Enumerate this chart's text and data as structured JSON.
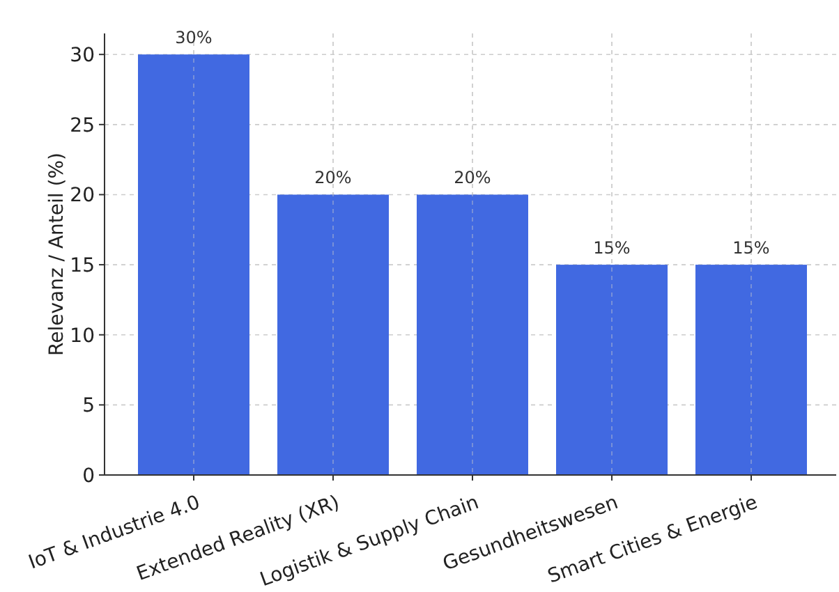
{
  "chart_data": {
    "type": "bar",
    "ylabel": "Relevanz / Anteil (%)",
    "categories": [
      "IoT & Industrie 4.0",
      "Extended Reality (XR)",
      "Logistik & Supply Chain",
      "Gesundheitswesen",
      "Smart Cities & Energie"
    ],
    "values": [
      30,
      20,
      20,
      15,
      15
    ],
    "value_labels": [
      "30%",
      "20%",
      "20%",
      "15%",
      "15%"
    ],
    "color": "#4169e1",
    "ylim": [
      0,
      31.5
    ],
    "yticks": [
      0,
      5,
      10,
      15,
      20,
      25,
      30
    ],
    "grid": true
  }
}
